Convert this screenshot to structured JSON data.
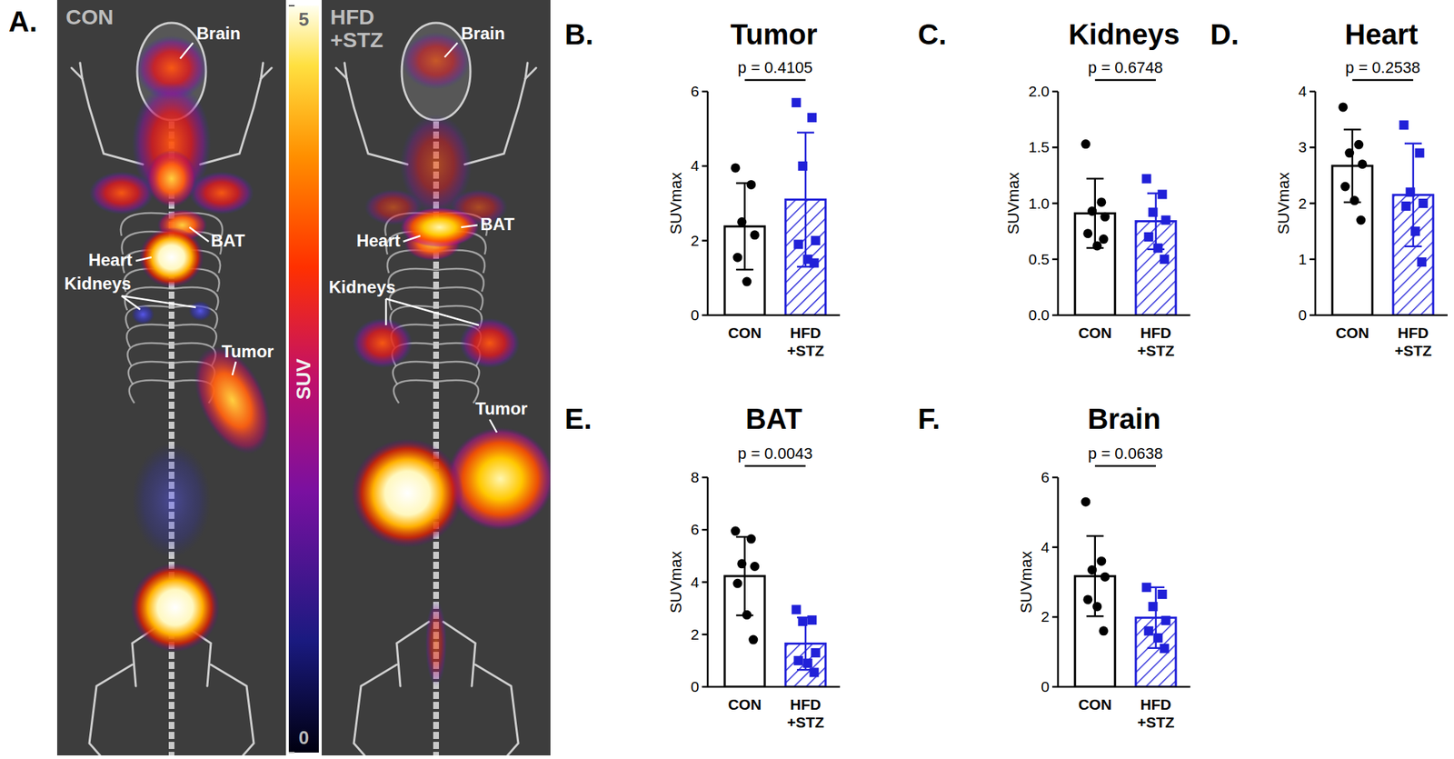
{
  "panel_a": {
    "letter": "A.",
    "images": [
      {
        "title": "CON",
        "labels": [
          "Brain",
          "Heart",
          "BAT",
          "Kidneys",
          "Tumor"
        ]
      },
      {
        "title": "HFD +STZ",
        "labels": [
          "Brain",
          "Heart",
          "BAT",
          "Kidneys",
          "Tumor"
        ]
      }
    ],
    "colorbar": {
      "title": "SUV",
      "lim": [
        0,
        5
      ],
      "ticks": [
        0,
        5
      ]
    }
  },
  "chart_data": [
    {
      "type": "bar",
      "letter": "B.",
      "title": "Tumor",
      "ylabel": "SUVmax",
      "categories": [
        "CON",
        "HFD +STZ"
      ],
      "colors": [
        "#000000",
        "#2020d8"
      ],
      "values": [
        2.38,
        3.1
      ],
      "errors": [
        1.16,
        1.8
      ],
      "points": [
        [
          3.95,
          3.5,
          2.5,
          2.15,
          1.55,
          0.9
        ],
        [
          5.7,
          5.3,
          4.0,
          2.0,
          1.9,
          1.5,
          1.4
        ]
      ],
      "ylim": [
        0,
        6
      ],
      "yticks": [
        0,
        2,
        4,
        6
      ],
      "annotation": "p = 0.4105"
    },
    {
      "type": "bar",
      "letter": "C.",
      "title": "Kidneys",
      "ylabel": "SUVmax",
      "categories": [
        "CON",
        "HFD +STZ"
      ],
      "colors": [
        "#000000",
        "#2020d8"
      ],
      "values": [
        0.91,
        0.84
      ],
      "errors": [
        0.31,
        0.25
      ],
      "points": [
        [
          1.53,
          1.01,
          0.93,
          0.88,
          0.73,
          0.62,
          0.68
        ],
        [
          1.22,
          1.08,
          0.92,
          0.85,
          0.7,
          0.6,
          0.5
        ]
      ],
      "ylim": [
        0,
        2
      ],
      "yticks": [
        {
          "value": 0,
          "label": "0.0"
        },
        {
          "value": 0.5,
          "label": "0.5"
        },
        {
          "value": 1,
          "label": "1.0"
        },
        {
          "value": 1.5,
          "label": "1.5"
        },
        {
          "value": 2,
          "label": "2.0"
        }
      ],
      "annotation": "p = 0.6748"
    },
    {
      "type": "bar",
      "letter": "D.",
      "title": "Heart",
      "ylabel": "SUVmax",
      "categories": [
        "CON",
        "HFD +STZ"
      ],
      "colors": [
        "#000000",
        "#2020d8"
      ],
      "values": [
        2.67,
        2.15
      ],
      "errors": [
        0.65,
        0.92
      ],
      "points": [
        [
          3.72,
          3.05,
          2.9,
          2.7,
          2.3,
          2.05,
          1.7
        ],
        [
          3.4,
          2.9,
          2.2,
          2.0,
          1.95,
          1.5,
          0.95
        ]
      ],
      "ylim": [
        0,
        4
      ],
      "yticks": [
        0,
        1,
        2,
        3,
        4
      ],
      "annotation": "p = 0.2538"
    },
    {
      "type": "bar",
      "letter": "E.",
      "title": "BAT",
      "ylabel": "SUVmax",
      "categories": [
        "CON",
        "HFD +STZ"
      ],
      "colors": [
        "#000000",
        "#2020d8"
      ],
      "values": [
        4.23,
        1.65
      ],
      "errors": [
        1.5,
        1.0
      ],
      "points": [
        [
          5.95,
          5.65,
          4.7,
          4.6,
          3.95,
          2.75,
          1.8
        ],
        [
          2.95,
          2.55,
          2.5,
          1.3,
          1.0,
          0.9,
          0.55
        ]
      ],
      "ylim": [
        0,
        8
      ],
      "yticks": [
        0,
        2,
        4,
        6,
        8
      ],
      "annotation": "p = 0.0043"
    },
    {
      "type": "bar",
      "letter": "F.",
      "title": "Brain",
      "ylabel": "SUVmax",
      "categories": [
        "CON",
        "HFD +STZ"
      ],
      "colors": [
        "#000000",
        "#2020d8"
      ],
      "values": [
        3.17,
        1.98
      ],
      "errors": [
        1.15,
        0.87
      ],
      "points": [
        [
          5.3,
          3.6,
          3.35,
          3.15,
          2.5,
          2.3,
          1.6
        ],
        [
          2.85,
          2.65,
          2.3,
          1.9,
          1.6,
          1.4,
          1.1
        ]
      ],
      "ylim": [
        0,
        6
      ],
      "yticks": [
        0,
        2,
        4,
        6
      ],
      "annotation": "p = 0.0638"
    }
  ]
}
